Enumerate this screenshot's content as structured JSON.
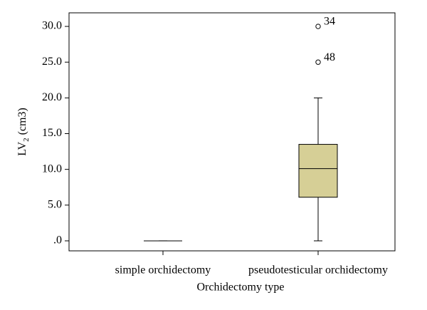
{
  "chart_data": {
    "type": "box",
    "xlabel": "Orchidectomy type",
    "ylabel": {
      "text": "LV",
      "subscript": "2",
      "suffix": "(cm3)"
    },
    "categories": [
      "simple orchidectomy",
      "pseudotesticular orchidectomy"
    ],
    "color": "#d6cf96",
    "boxes": [
      {
        "min": 0,
        "q1": 0,
        "median": 0,
        "q3": 0,
        "max": 0,
        "outliers": []
      },
      {
        "min": 0,
        "q1": 6.1,
        "median": 10.1,
        "q3": 13.5,
        "max": 20,
        "outliers": [
          {
            "value": 30,
            "label": "34"
          },
          {
            "value": 25,
            "label": "48"
          }
        ]
      }
    ],
    "ylim": [
      -1.4,
      31.9
    ],
    "yticks": [
      {
        "value": 0,
        "label": ".0"
      },
      {
        "value": 5,
        "label": "5.0"
      },
      {
        "value": 10,
        "label": "10.0"
      },
      {
        "value": 15,
        "label": "15.0"
      },
      {
        "value": 20,
        "label": "20.0"
      },
      {
        "value": 25,
        "label": "25.0"
      },
      {
        "value": 30,
        "label": "30.0"
      }
    ]
  }
}
